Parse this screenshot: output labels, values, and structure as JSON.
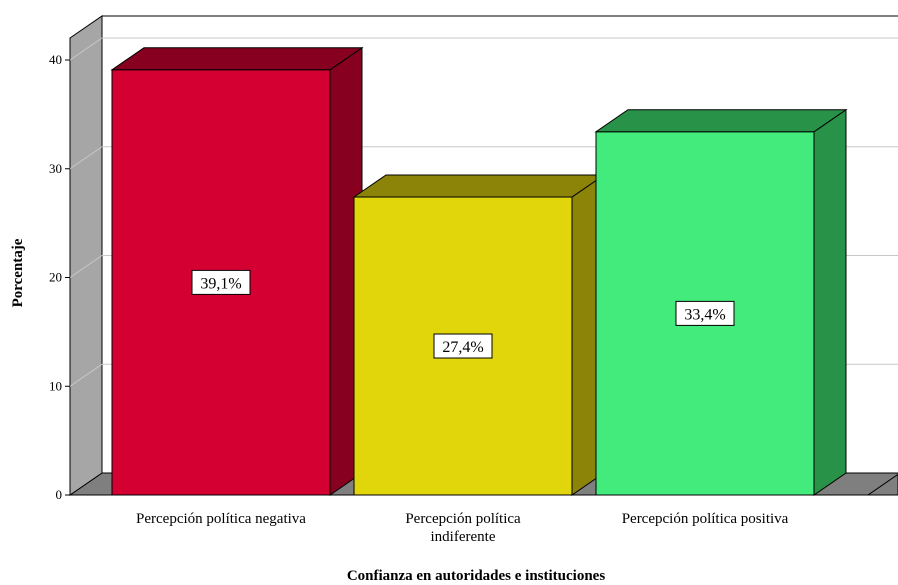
{
  "chart_data": {
    "type": "bar",
    "title": "",
    "xlabel": "Confianza en autoridades e instituciones",
    "ylabel": "Porcentaje",
    "ylim": [
      0,
      40
    ],
    "yticks": [
      0,
      10,
      20,
      30,
      40
    ],
    "grid": true,
    "categories": [
      [
        "Percepción política negativa"
      ],
      [
        "Percepción política",
        "indiferente"
      ],
      [
        "Percepción política positiva"
      ]
    ],
    "values": [
      39.1,
      27.4,
      33.4
    ],
    "data_labels": [
      "39,1%",
      "27,4%",
      "33,4%"
    ],
    "colors": {
      "fronts": [
        "#d50032",
        "#e1d50c",
        "#43ea7c"
      ],
      "sides": [
        "#870020",
        "#8c8409",
        "#279248"
      ],
      "tops": [
        "#870020",
        "#8c8409",
        "#279248"
      ],
      "grid": "#c8c8c8",
      "wall_side": "#a6a6a6",
      "floor": "#7f7f7f"
    }
  }
}
